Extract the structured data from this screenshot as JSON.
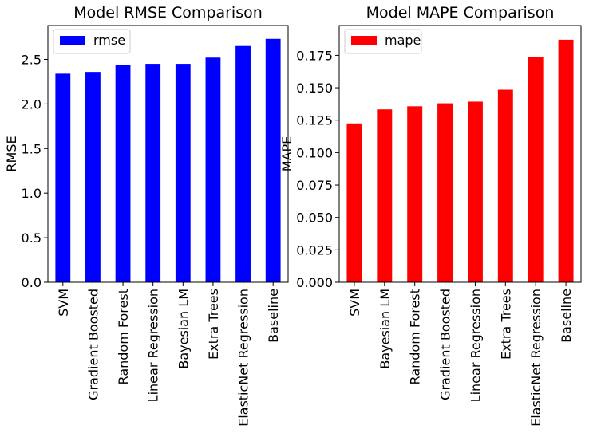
{
  "chart_data": [
    {
      "type": "bar",
      "title": "Model RMSE Comparison",
      "xlabel": "",
      "ylabel": "RMSE",
      "ylim": [
        0,
        2.88
      ],
      "yticks": [
        0.0,
        0.5,
        1.0,
        1.5,
        2.0,
        2.5
      ],
      "ytick_labels": [
        "0.0",
        "0.5",
        "1.0",
        "1.5",
        "2.0",
        "2.5"
      ],
      "categories": [
        "SVM",
        "Gradient Boosted",
        "Random Forest",
        "Linear Regression",
        "Bayesian LM",
        "Extra Trees",
        "ElasticNet Regression",
        "Baseline"
      ],
      "series": [
        {
          "name": "rmse",
          "values": [
            2.34,
            2.36,
            2.44,
            2.45,
            2.45,
            2.52,
            2.65,
            2.73
          ],
          "color": "#0000ff"
        }
      ],
      "legend": "top-left",
      "grid": false
    },
    {
      "type": "bar",
      "title": "Model MAPE Comparison",
      "xlabel": "",
      "ylabel": "MAPE",
      "ylim": [
        0,
        0.198
      ],
      "yticks": [
        0.0,
        0.025,
        0.05,
        0.075,
        0.1,
        0.125,
        0.15,
        0.175
      ],
      "ytick_labels": [
        "0.000",
        "0.025",
        "0.050",
        "0.075",
        "0.100",
        "0.125",
        "0.150",
        "0.175"
      ],
      "categories": [
        "SVM",
        "Bayesian LM",
        "Random Forest",
        "Gradient Boosted",
        "Linear Regression",
        "Extra Trees",
        "ElasticNet Regression",
        "Baseline"
      ],
      "series": [
        {
          "name": "mape",
          "values": [
            0.1225,
            0.1333,
            0.1357,
            0.138,
            0.1393,
            0.1485,
            0.1737,
            0.187
          ],
          "color": "#ff0000"
        }
      ],
      "legend": "top-left",
      "grid": false
    }
  ]
}
